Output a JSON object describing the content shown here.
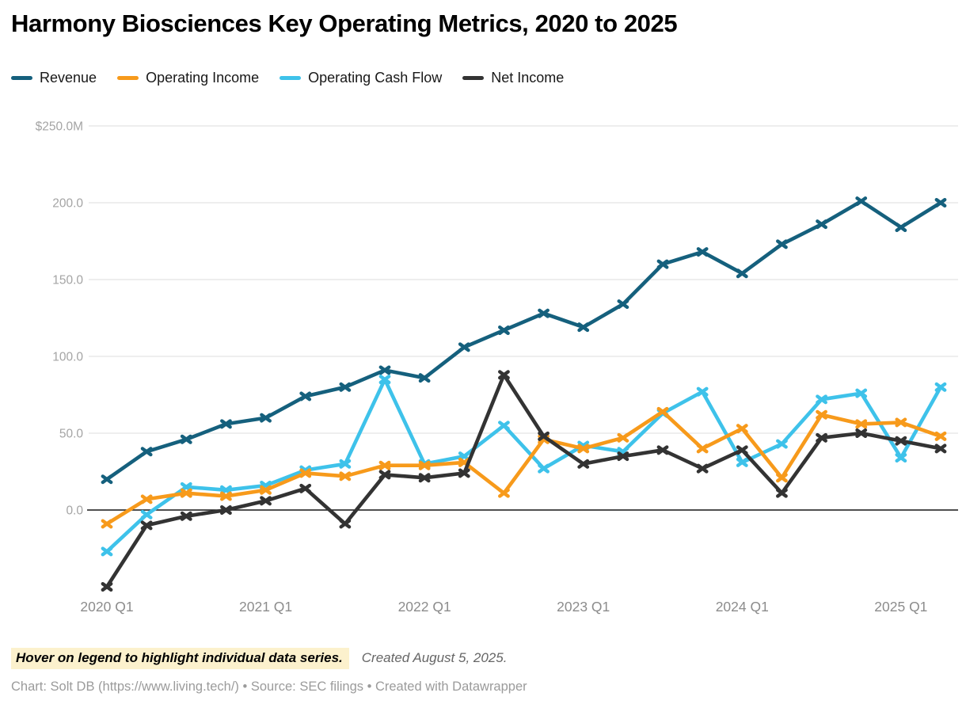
{
  "title": "Harmony Biosciences Key Operating Metrics, 2020 to 2025",
  "legend": {
    "items": [
      {
        "label": "Revenue",
        "color": "#15607d"
      },
      {
        "label": "Operating Income",
        "color": "#f79a1b"
      },
      {
        "label": "Operating Cash Flow",
        "color": "#3ec2ea"
      },
      {
        "label": "Net Income",
        "color": "#333333"
      }
    ]
  },
  "chart_data": {
    "type": "line",
    "title": "Harmony Biosciences Key Operating Metrics, 2020 to 2025",
    "unit": "USD millions",
    "x": [
      "2020 Q1",
      "2020 Q2",
      "2020 Q3",
      "2020 Q4",
      "2021 Q1",
      "2021 Q2",
      "2021 Q3",
      "2021 Q4",
      "2022 Q1",
      "2022 Q2",
      "2022 Q3",
      "2022 Q4",
      "2023 Q1",
      "2023 Q2",
      "2023 Q3",
      "2023 Q4",
      "2024 Q1",
      "2024 Q2",
      "2024 Q3",
      "2024 Q4",
      "2025 Q1",
      "2025 Q2"
    ],
    "x_tick_labels": [
      "2020 Q1",
      "2021 Q1",
      "2022 Q1",
      "2023 Q1",
      "2024 Q1",
      "2025 Q1"
    ],
    "tick_indices": [
      0,
      4,
      8,
      12,
      16,
      20
    ],
    "y_ticks": [
      0,
      50,
      100,
      150,
      200,
      250
    ],
    "y_tick_labels": [
      "0.0",
      "50.0",
      "100.0",
      "150.0",
      "200.0",
      "$250.0M"
    ],
    "ylim": [
      -55,
      255
    ],
    "grid": "horizontal",
    "legend_position": "top-left",
    "marker": "x-cross",
    "series": [
      {
        "name": "Revenue",
        "color": "#15607d",
        "values": [
          20,
          38,
          46,
          56,
          60,
          74,
          80,
          91,
          86,
          106,
          117,
          128,
          119,
          134,
          160,
          168,
          154,
          173,
          186,
          201,
          184,
          200
        ]
      },
      {
        "name": "Operating Cash Flow",
        "color": "#3ec2ea",
        "values": [
          -27,
          -3,
          15,
          13,
          16,
          26,
          30,
          85,
          30,
          35,
          55,
          27,
          42,
          38,
          63,
          77,
          31,
          43,
          72,
          76,
          34,
          80
        ]
      },
      {
        "name": "Operating Income",
        "color": "#f79a1b",
        "values": [
          -9,
          7,
          11,
          9,
          13,
          24,
          22,
          29,
          29,
          31,
          11,
          46,
          40,
          47,
          64,
          40,
          53,
          21,
          62,
          56,
          57,
          48
        ]
      },
      {
        "name": "Net Income",
        "color": "#333333",
        "values": [
          -50,
          -10,
          -4,
          0,
          6,
          14,
          -9,
          23,
          21,
          24,
          88,
          48,
          30,
          35,
          39,
          27,
          39,
          11,
          47,
          50,
          45,
          40
        ]
      }
    ]
  },
  "footer": {
    "hover_note": "Hover on legend to highlight individual data series.",
    "created": "Created August 5, 2025.",
    "attribution": "Chart: Solt DB (https://www.living.tech/) • Source: SEC filings • Created with Datawrapper"
  }
}
